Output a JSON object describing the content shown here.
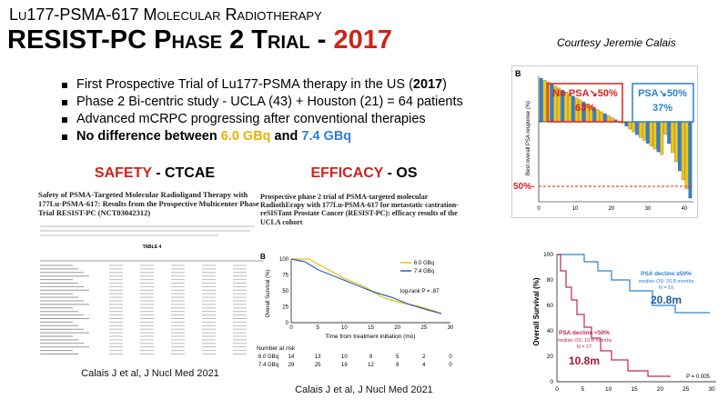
{
  "header": {
    "title_line1": "Lu177-PSMA-617 Molecular Radiotherapy",
    "title_line2": "RESIST-PC Phase 2 Trial - ",
    "title_year": "2017",
    "courtesy": "Courtesy Jeremie Calais"
  },
  "bullets": {
    "b1": "First Prospective Trial of Lu177-PSMA therapy in the US (",
    "b1_bold": "2017",
    "b1_end": ")",
    "b2": "Phase 2 Bi-centric study - UCLA (43) + Houston (21) = 64 patients",
    "b3": "Advanced mCRPC progressing after conventional therapies",
    "b4": "No difference between ",
    "b4_dose_a": "6.0 GBq",
    "b4_join": " and ",
    "b4_dose_b": "7.4 GBq"
  },
  "safety": {
    "heading": "SAFETY",
    "subheading": " - CTCAE",
    "paper_title": "Safety of PSMA-Targeted Molecular Radioligand Therapy with 177Lu-PSMA-617: Results from the Prospective Multicenter Phase 2 Trial RESIST-PC (NCT03042312)",
    "table_title": "TABLE 4",
    "citation": "Calais J et al, J Nucl Med 2021"
  },
  "efficacy": {
    "heading": "EFFICACY",
    "subheading": " - OS",
    "paper_title": "Prospective phase 2 trial of PSMA-targeted molecular RadiothErapy with 177Lu-PSMA-617 for metastatic castration-reSISTant Prostate Cancer (RESIST-PC): efficacy results of the UCLA cohort",
    "km": {
      "panel": "B",
      "y_label": "Overall Survival (%)",
      "x_label": "Time from treatment initiation (mo)",
      "yticks": [
        "0",
        "25",
        "50",
        "75",
        "100"
      ],
      "xticks": [
        "0",
        "5",
        "10",
        "15",
        "20",
        "25",
        "30"
      ],
      "legend": [
        "6.0 GBq",
        "7.4 GBq"
      ],
      "pvalue": "log-rank P = .87",
      "risk_title": "Number at risk",
      "risk_rows": [
        {
          "label": "6.0 GBq",
          "counts": [
            "14",
            "13",
            "10",
            "8",
            "5",
            "2",
            "0"
          ]
        },
        {
          "label": "7.4 GBq",
          "counts": [
            "29",
            "25",
            "19",
            "12",
            "9",
            "4",
            "0"
          ]
        }
      ]
    },
    "citation": "Calais J et al, J Nucl Med 2021"
  },
  "waterfall": {
    "panel": "B",
    "y_label": "Best overall PSA response (%)",
    "no_response": "No PSA↘50%",
    "no_response_pct": "63%",
    "response": "PSA↘50%",
    "response_pct": "37%",
    "threshold": "50%-",
    "xticks": [
      "0",
      "10",
      "20",
      "30",
      "40"
    ]
  },
  "survival": {
    "y_label": "Overall Survival (%)",
    "yticks": [
      "0",
      "20",
      "40",
      "60",
      "80",
      "100"
    ],
    "xticks": [
      "0",
      "5",
      "10",
      "15",
      "20",
      "25",
      "30"
    ],
    "high_label": "PSA decline ≥50%",
    "high_median": "median OS: 20.8 months",
    "high_n": "N = 16",
    "high_big": "20.8m",
    "low_label": "PSA decline <50%",
    "low_median": "median OS: 10.8 months",
    "low_n": "N = 27",
    "low_big": "10.8m",
    "pvalue": "P = 0.005"
  }
}
